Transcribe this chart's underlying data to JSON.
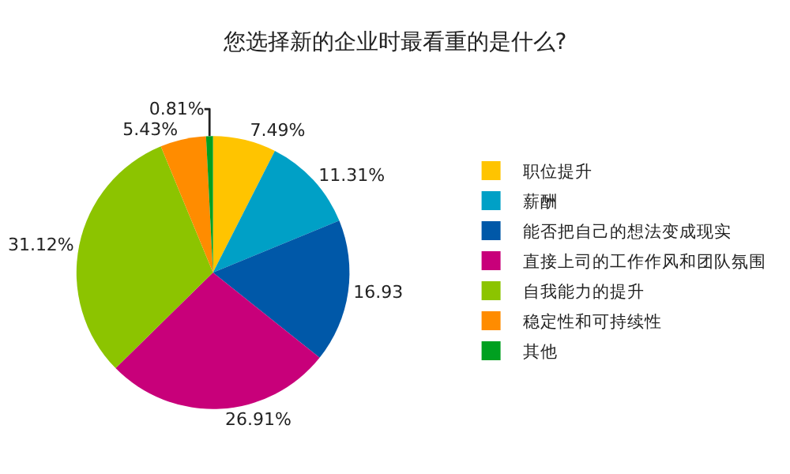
{
  "chart_data": {
    "type": "pie",
    "title": "您选择新的企业时最看重的是什么?",
    "categories": [
      "职位提升",
      "薪酬",
      "能否把自己的想法变成现实",
      "直接上司的工作作风和团队氛围",
      "自我能力的提升",
      "稳定性和可持续性",
      "其他"
    ],
    "values": [
      7.49,
      11.31,
      16.93,
      26.91,
      31.12,
      5.43,
      0.81
    ],
    "value_labels": [
      "7.49%",
      "11.31%",
      "16.93",
      "26.91%",
      "31.12%",
      "5.43%",
      "0.81%"
    ],
    "colors": [
      "#ffc400",
      "#00a0c6",
      "#0058a8",
      "#c8007a",
      "#8cc400",
      "#ff8c00",
      "#00a020"
    ],
    "legend": "right"
  }
}
